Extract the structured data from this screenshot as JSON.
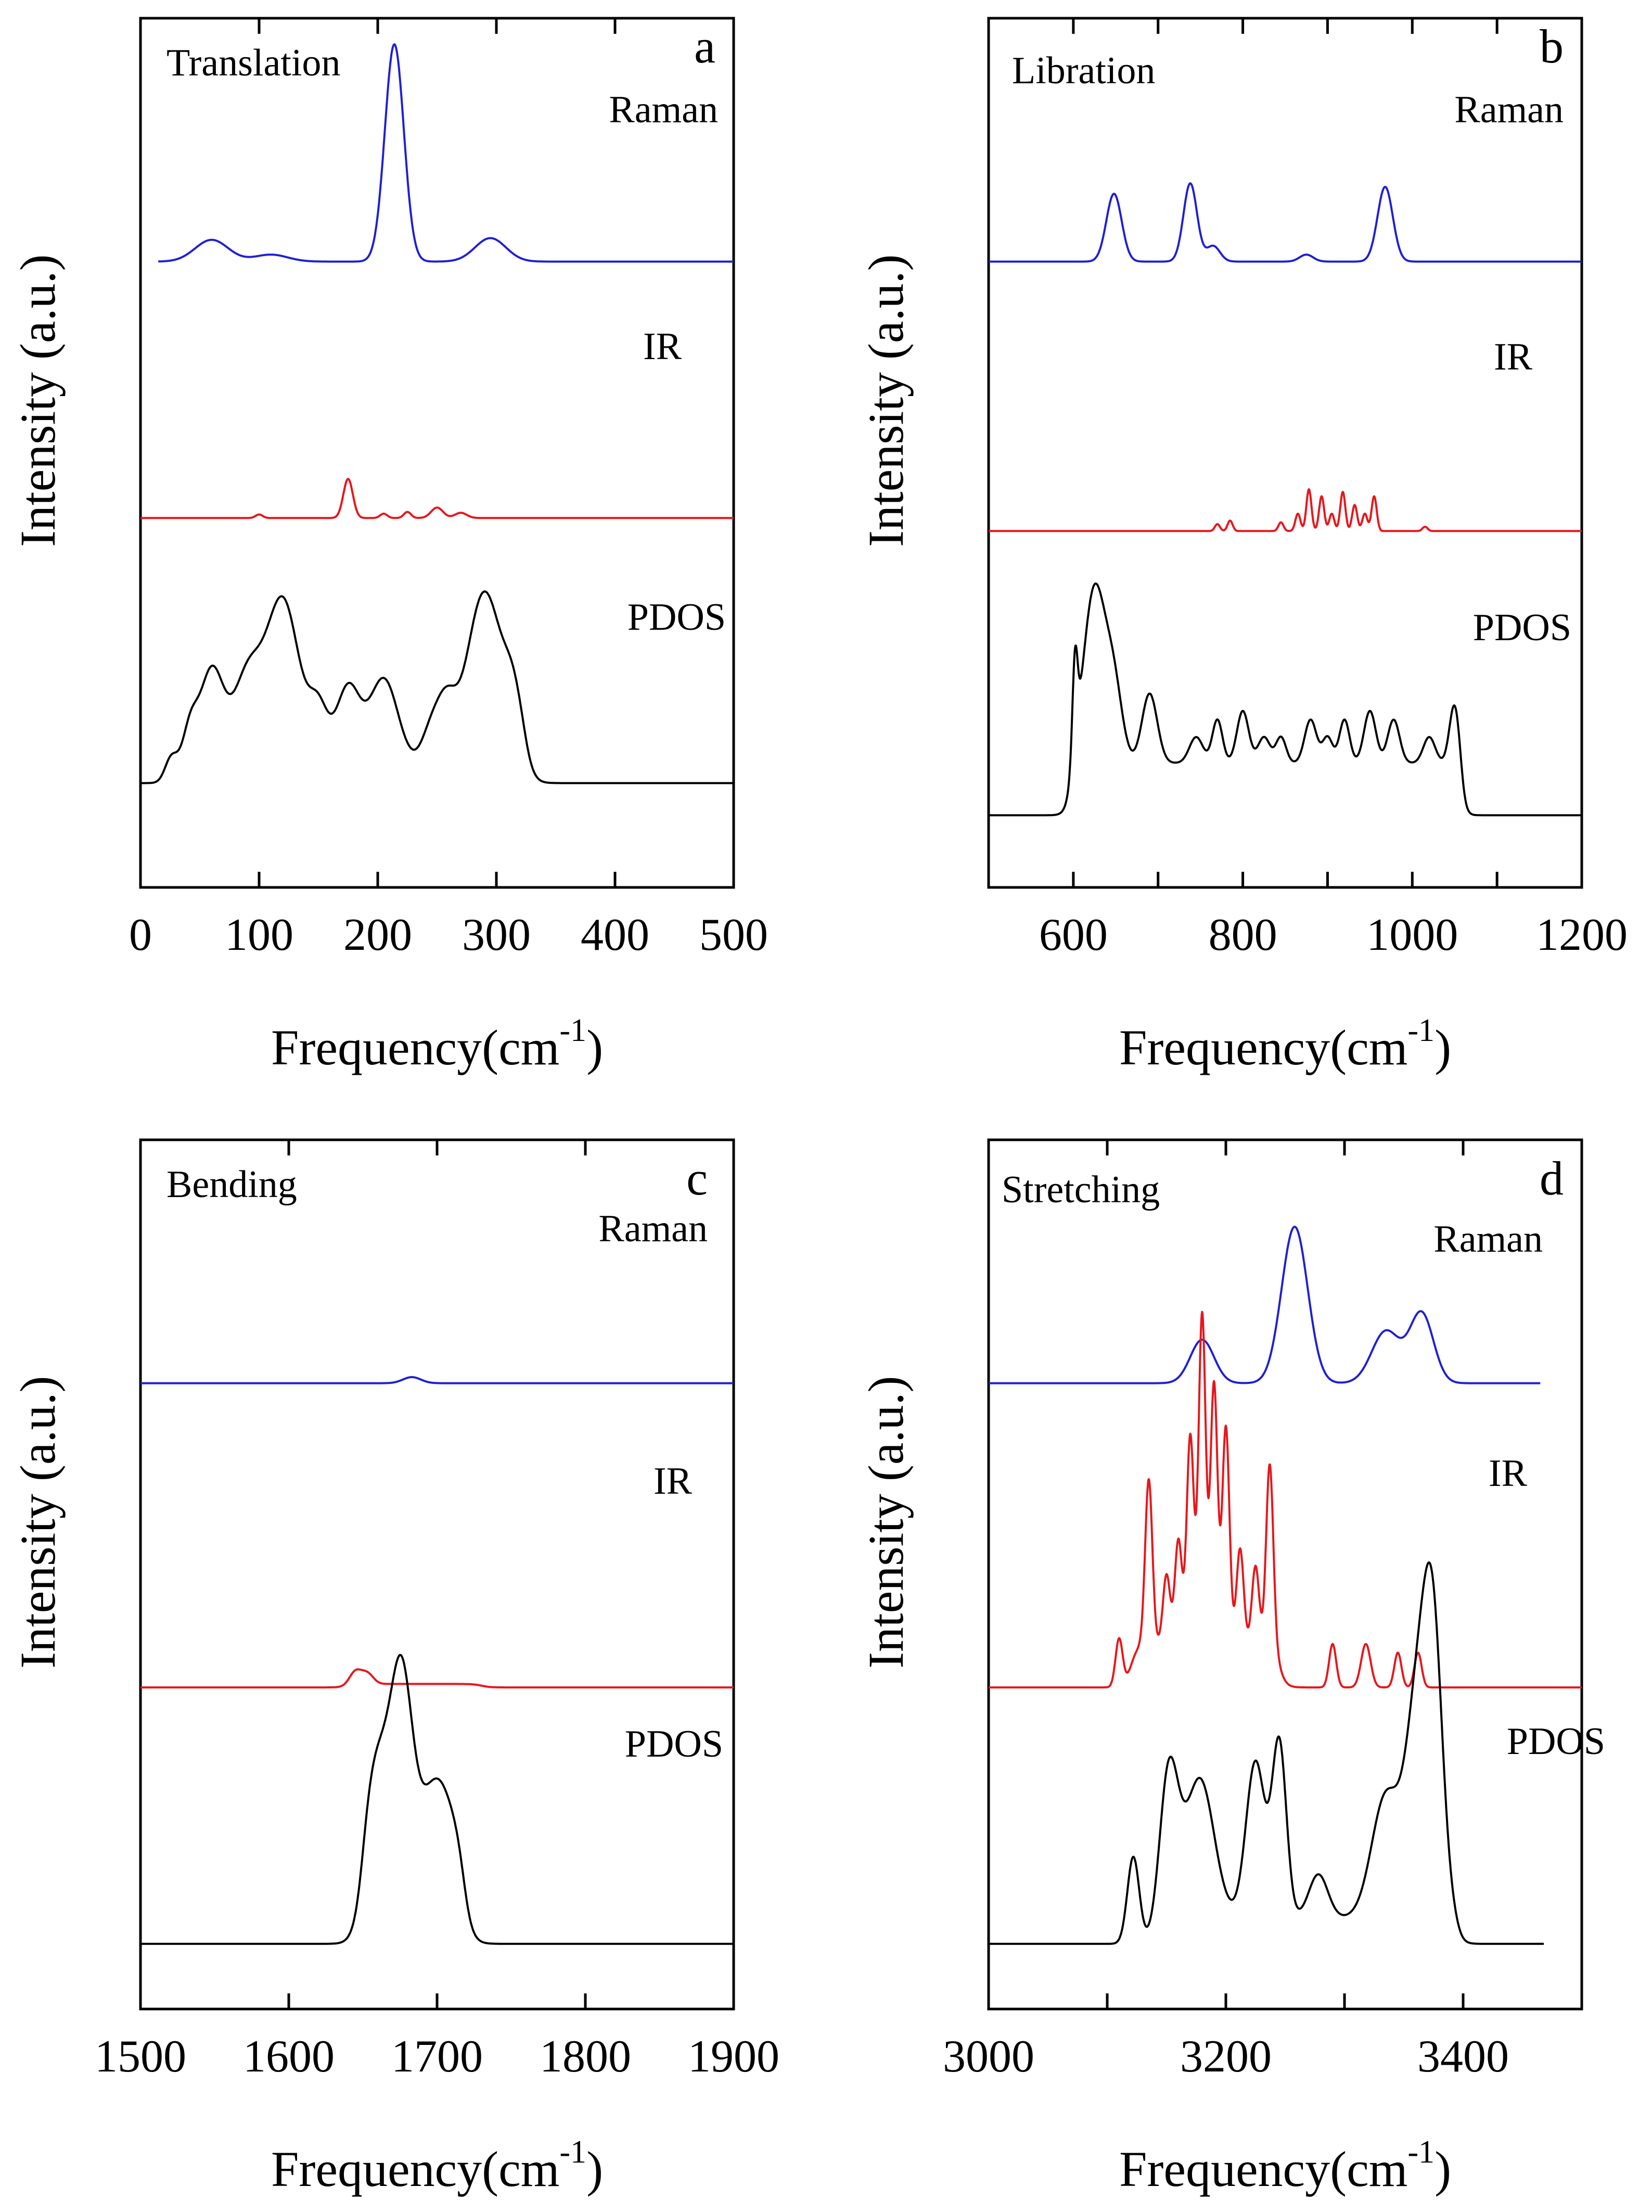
{
  "chart_data": [
    {
      "type": "line",
      "panel_letter": "a",
      "mode_label": "Translation",
      "xlabel": "Frequency(cm",
      "xlabel_sup": "-1",
      "xlabel_close": ")",
      "ylabel": "Intensity (a.u.)",
      "xlim": [
        0,
        500
      ],
      "xticks": [
        0,
        100,
        200,
        300,
        400,
        500
      ],
      "xtick_labels": [
        "0",
        "100",
        "200",
        "300",
        "400",
        "500"
      ],
      "series": [
        {
          "name": "Raman",
          "color": "#1f1fd6",
          "baseline": 0.72,
          "x_range": [
            15,
            500
          ],
          "peaks": [
            [
              60,
              14,
              0.025
            ],
            [
              110,
              14,
              0.008
            ],
            [
              214,
              8,
              0.25
            ],
            [
              295,
              13,
              0.027
            ]
          ]
        },
        {
          "name": "IR",
          "color": "#e8161b",
          "baseline": 0.425,
          "x_range": [
            0,
            500
          ],
          "peaks": [
            [
              100,
              3,
              0.004
            ],
            [
              175,
              4,
              0.045
            ],
            [
              205,
              3,
              0.005
            ],
            [
              225,
              3,
              0.007
            ],
            [
              250,
              5,
              0.012
            ],
            [
              270,
              5,
              0.006
            ]
          ]
        },
        {
          "name": "PDOS",
          "color": "#000000",
          "baseline": 0.12,
          "x_range": [
            0,
            500
          ],
          "peaks": [
            [
              25,
              5,
              0.02
            ],
            [
              42,
              6,
              0.04
            ],
            [
              60,
              10,
              0.11
            ],
            [
              90,
              12,
              0.1
            ],
            [
              120,
              14,
              0.19
            ],
            [
              150,
              8,
              0.06
            ],
            [
              175,
              10,
              0.09
            ],
            [
              205,
              12,
              0.1
            ],
            [
              245,
              8,
              0.04
            ],
            [
              258,
              8,
              0.06
            ],
            [
              290,
              15,
              0.2
            ],
            [
              315,
              8,
              0.06
            ]
          ],
          "plateau": [
            25,
            325,
            0.02
          ]
        }
      ]
    },
    {
      "type": "line",
      "panel_letter": "b",
      "mode_label": "Libration",
      "xlabel": "Frequency(cm",
      "xlabel_sup": "-1",
      "xlabel_close": ")",
      "ylabel": "Intensity (a.u.)",
      "xlim": [
        500,
        1200
      ],
      "xticks": [
        500,
        600,
        700,
        800,
        900,
        1000,
        1100,
        1200
      ],
      "xtick_labels": [
        "",
        "600",
        "",
        "800",
        "",
        "1000",
        "",
        "1200"
      ],
      "series": [
        {
          "name": "Raman",
          "color": "#1f1fd6",
          "baseline": 0.72,
          "x_range": [
            500,
            1200
          ],
          "peaks": [
            [
              648,
              9,
              0.078
            ],
            [
              738,
              8,
              0.09
            ],
            [
              765,
              8,
              0.018
            ],
            [
              875,
              8,
              0.008
            ],
            [
              968,
              9,
              0.086
            ]
          ]
        },
        {
          "name": "IR",
          "color": "#e8161b",
          "baseline": 0.41,
          "x_range": [
            500,
            1200
          ],
          "peaks": [
            [
              770,
              3,
              0.008
            ],
            [
              785,
              3,
              0.012
            ],
            [
              845,
              3,
              0.01
            ],
            [
              865,
              3,
              0.02
            ],
            [
              878,
              3,
              0.048
            ],
            [
              893,
              3,
              0.04
            ],
            [
              905,
              3,
              0.02
            ],
            [
              918,
              3,
              0.045
            ],
            [
              932,
              3,
              0.03
            ],
            [
              944,
              3,
              0.02
            ],
            [
              955,
              3,
              0.04
            ],
            [
              1015,
              3,
              0.005
            ]
          ]
        },
        {
          "name": "PDOS",
          "color": "#000000",
          "baseline": 0.083,
          "x_range": [
            500,
            1200
          ],
          "peaks": [
            [
              602,
              3,
              0.1
            ],
            [
              625,
              13,
              0.2
            ],
            [
              648,
              10,
              0.08
            ],
            [
              690,
              9,
              0.08
            ],
            [
              745,
              8,
              0.03
            ],
            [
              770,
              6,
              0.05
            ],
            [
              800,
              7,
              0.06
            ],
            [
              825,
              7,
              0.03
            ],
            [
              845,
              6,
              0.03
            ],
            [
              880,
              7,
              0.05
            ],
            [
              900,
              6,
              0.03
            ],
            [
              920,
              6,
              0.05
            ],
            [
              950,
              7,
              0.06
            ],
            [
              978,
              7,
              0.05
            ],
            [
              1020,
              7,
              0.03
            ],
            [
              1050,
              6,
              0.07
            ]
          ],
          "plateau": [
            597,
            1058,
            0.06
          ]
        }
      ]
    },
    {
      "type": "line",
      "panel_letter": "c",
      "mode_label": "Bending",
      "xlabel": "Frequency(cm",
      "xlabel_sup": "-1",
      "xlabel_close": ")",
      "ylabel": "Intensity (a.u.)",
      "xlim": [
        1500,
        1900
      ],
      "xticks": [
        1500,
        1600,
        1700,
        1800,
        1900
      ],
      "xtick_labels": [
        "1500",
        "1600",
        "1700",
        "1800",
        "1900"
      ],
      "series": [
        {
          "name": "Raman",
          "color": "#1f1fd6",
          "baseline": 0.72,
          "x_range": [
            1500,
            1900
          ],
          "peaks": [
            [
              1683,
              6,
              0.007
            ]
          ]
        },
        {
          "name": "IR",
          "color": "#e8161b",
          "baseline": 0.37,
          "x_range": [
            1500,
            1900
          ],
          "peaks": [
            [
              1645,
              4,
              0.015
            ],
            [
              1653,
              4,
              0.012
            ]
          ],
          "plateau": [
            1640,
            1730,
            0.004
          ]
        },
        {
          "name": "PDOS",
          "color": "#000000",
          "baseline": 0.075,
          "x_range": [
            1500,
            1900
          ],
          "peaks": [
            [
              1676,
              7,
              0.18
            ],
            [
              1660,
              8,
              0.08
            ],
            [
              1700,
              8,
              0.05
            ]
          ],
          "plateau": [
            1650,
            1718,
            0.14
          ]
        }
      ]
    },
    {
      "type": "line",
      "panel_letter": "d",
      "mode_label": "Stretching",
      "xlabel": "Frequency(cm",
      "xlabel_sup": "-1",
      "xlabel_close": ")",
      "ylabel": "Intensity (a.u.)",
      "xlim": [
        3000,
        3500
      ],
      "xticks": [
        3000,
        3100,
        3200,
        3300,
        3400,
        3500
      ],
      "xtick_labels": [
        "3000",
        "",
        "3200",
        "",
        "3400",
        ""
      ],
      "series": [
        {
          "name": "Raman",
          "color": "#1f1fd6",
          "baseline": 0.72,
          "x_range": [
            3000,
            3465
          ],
          "peaks": [
            [
              3180,
              10,
              0.05
            ],
            [
              3258,
              11,
              0.18
            ],
            [
              3335,
              12,
              0.06
            ],
            [
              3365,
              10,
              0.08
            ]
          ]
        },
        {
          "name": "IR",
          "color": "#e8161b",
          "baseline": 0.37,
          "x_range": [
            3000,
            3500
          ],
          "peaks": [
            [
              3110,
              3,
              0.055
            ],
            [
              3135,
              3,
              0.19
            ],
            [
              3150,
              3,
              0.08
            ],
            [
              3160,
              3,
              0.12
            ],
            [
              3170,
              3,
              0.24
            ],
            [
              3180,
              3,
              0.38
            ],
            [
              3190,
              3,
              0.3
            ],
            [
              3200,
              3,
              0.25
            ],
            [
              3212,
              3,
              0.11
            ],
            [
              3225,
              3,
              0.09
            ],
            [
              3237,
              3,
              0.21
            ],
            [
              3290,
              3,
              0.05
            ],
            [
              3318,
              4,
              0.05
            ],
            [
              3345,
              3,
              0.04
            ],
            [
              3362,
              3,
              0.04
            ]
          ],
          "plateau": [
            3120,
            3245,
            0.05
          ]
        },
        {
          "name": "PDOS",
          "color": "#000000",
          "baseline": 0.075,
          "x_range": [
            3000,
            3468
          ],
          "peaks": [
            [
              3122,
              5,
              0.1
            ],
            [
              3152,
              8,
              0.17
            ],
            [
              3178,
              12,
              0.16
            ],
            [
              3225,
              8,
              0.18
            ],
            [
              3245,
              6,
              0.2
            ],
            [
              3278,
              8,
              0.05
            ],
            [
              3335,
              12,
              0.14
            ],
            [
              3362,
              10,
              0.24
            ],
            [
              3375,
              8,
              0.28
            ]
          ],
          "plateau": [
            3145,
            3395,
            0.03
          ]
        }
      ]
    }
  ]
}
